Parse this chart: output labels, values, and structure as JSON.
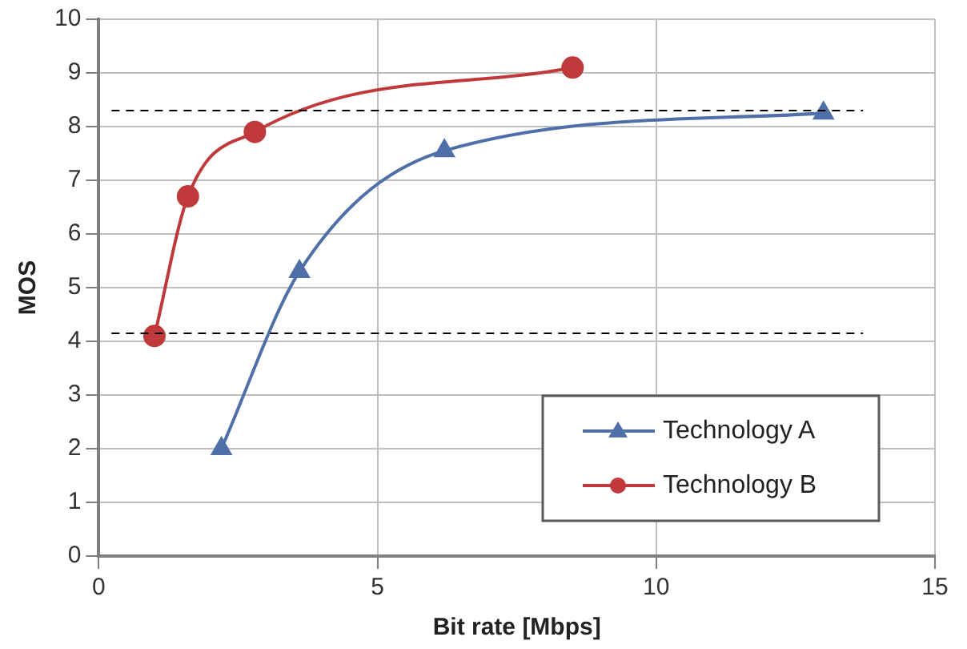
{
  "chart_data": {
    "type": "line",
    "xlabel": "Bit rate [Mbps]",
    "ylabel": "MOS",
    "xlim": [
      0,
      15
    ],
    "xticks": [
      0,
      5,
      10,
      15
    ],
    "ylim": [
      0,
      10
    ],
    "yticks": [
      0,
      1,
      2,
      3,
      4,
      5,
      6,
      7,
      8,
      9,
      10
    ],
    "grid": true,
    "legend": "bottom right",
    "series": [
      {
        "name": "Technology A",
        "color": "#4f6fa8",
        "marker": "triangle",
        "x": [
          2.2,
          3.6,
          6.2,
          13.0
        ],
        "values": [
          2.0,
          5.3,
          7.55,
          8.25
        ]
      },
      {
        "name": "Technology B",
        "color": "#c0393b",
        "marker": "circle",
        "x": [
          1.0,
          1.6,
          2.8,
          8.5
        ],
        "values": [
          4.1,
          6.7,
          7.9,
          9.1
        ]
      }
    ],
    "ref_lines": [
      {
        "axis": "y",
        "value": 8.3,
        "line_style": "dashed",
        "color": "#000000"
      },
      {
        "axis": "y",
        "value": 4.15,
        "line_style": "dashed",
        "color": "#000000"
      }
    ]
  }
}
